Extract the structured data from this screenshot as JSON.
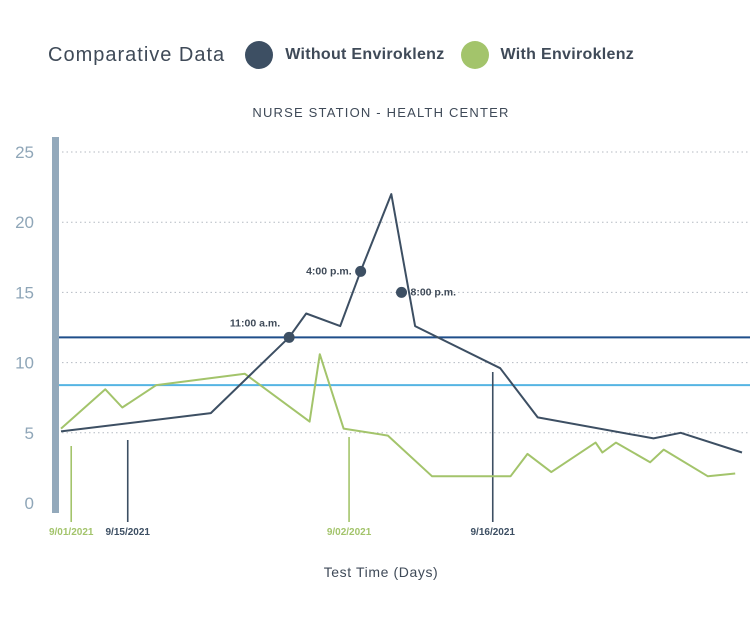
{
  "legend": {
    "heading": "Comparative Data",
    "items": [
      {
        "label": "Without Enviroklenz",
        "color": "#3d4f63"
      },
      {
        "label": "With Enviroklenz",
        "color": "#a3c46b"
      }
    ]
  },
  "chart_data": {
    "type": "line",
    "title": "NURSE STATION - HEALTH CENTER",
    "xlabel": "Test Time (Days)",
    "ylabel": "",
    "ylim": [
      0,
      25
    ],
    "yticks": [
      0,
      5,
      10,
      15,
      20,
      25
    ],
    "grid": "horizontal dotted",
    "xlim": [
      0,
      100
    ],
    "x_markers": [
      {
        "label": "9/01/2021",
        "x": 1.5,
        "color": "#a3c46b"
      },
      {
        "label": "9/15/2021",
        "x": 9.8,
        "color": "#3d4f63"
      },
      {
        "label": "9/02/2021",
        "x": 42.3,
        "color": "#a3c46b"
      },
      {
        "label": "9/16/2021",
        "x": 63.4,
        "color": "#3d4f63"
      }
    ],
    "reference_lines": [
      {
        "y": 11.8,
        "color": "#1f4e8a"
      },
      {
        "y": 8.4,
        "color": "#55b4e3"
      }
    ],
    "series": [
      {
        "name": "Without Enviroklenz",
        "color": "#3d4f63",
        "x": [
          0,
          22,
          33.5,
          36,
          41,
          44,
          48.5,
          52,
          64.5,
          70,
          87,
          91,
          100
        ],
        "y": [
          5.1,
          6.4,
          11.8,
          13.5,
          12.6,
          16.5,
          22,
          12.6,
          9.6,
          6.1,
          4.6,
          5.0,
          3.6
        ]
      },
      {
        "name": "With Enviroklenz",
        "color": "#a3c46b",
        "x": [
          0,
          6.5,
          9,
          14,
          27,
          36.5,
          38,
          41.5,
          48,
          54.5,
          66,
          68.5,
          72,
          78.5,
          79.5,
          81.5,
          86.5,
          88.5,
          95,
          99
        ],
        "y": [
          5.3,
          8.1,
          6.8,
          8.4,
          9.2,
          5.8,
          10.6,
          5.3,
          4.8,
          1.9,
          1.9,
          3.5,
          2.2,
          4.3,
          3.6,
          4.3,
          2.9,
          3.8,
          1.9,
          2.1
        ]
      }
    ],
    "annotations": [
      {
        "label": "11:00 a.m.",
        "x": 33.5,
        "y": 11.8
      },
      {
        "label": "4:00 p.m.",
        "x": 44,
        "y": 16.5
      },
      {
        "label": "8:00 p.m.",
        "x": 50,
        "y": 15.0
      }
    ]
  }
}
